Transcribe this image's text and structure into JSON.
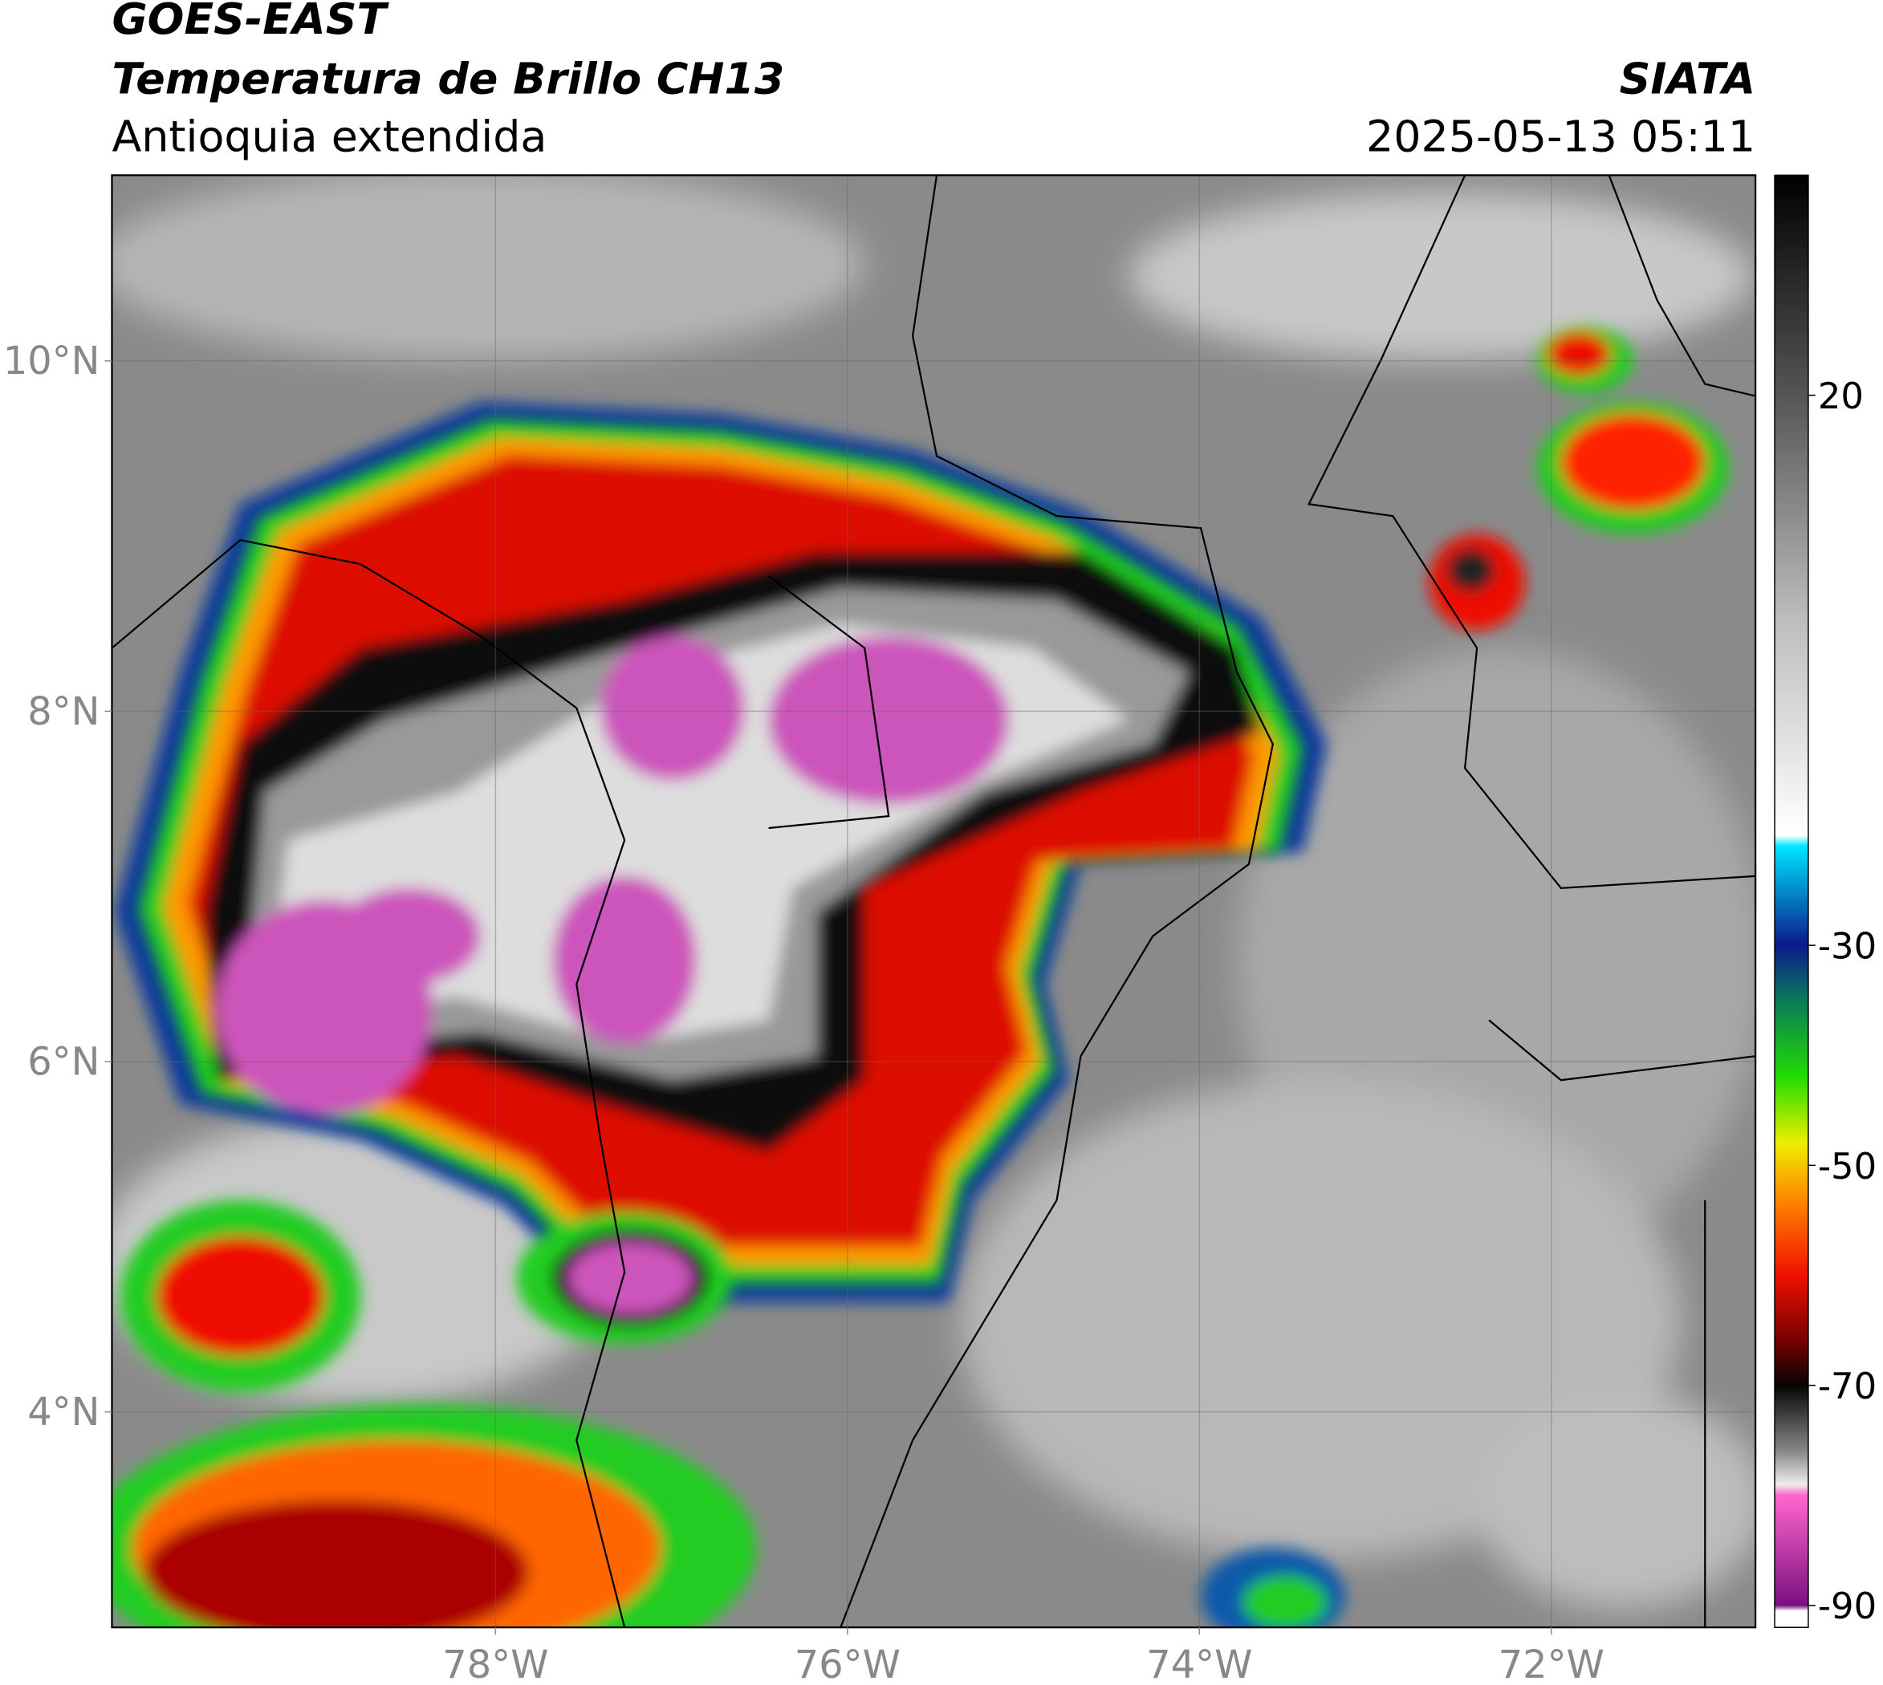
{
  "title": "GOES-EAST",
  "subtitle": "Temperatura de Brillo CH13",
  "region": "Antioquia extendida",
  "source": "SIATA",
  "datetime": "2025-05-13 05:11",
  "map": {
    "xlim": [
      -80.18,
      -70.84
    ],
    "ylim": [
      2.77,
      11.06
    ],
    "xticks": [
      {
        "value": -78,
        "label": "78°W"
      },
      {
        "value": -76,
        "label": "76°W"
      },
      {
        "value": -74,
        "label": "74°W"
      },
      {
        "value": -72,
        "label": "72°W"
      }
    ],
    "yticks": [
      {
        "value": 4,
        "label": "4°N"
      },
      {
        "value": 6,
        "label": "6°N"
      },
      {
        "value": 8,
        "label": "8°N"
      },
      {
        "value": 10,
        "label": "10°N"
      }
    ],
    "grid": true
  },
  "colorbar": {
    "clim": [
      -92,
      40
    ],
    "ticks": [
      20,
      -30,
      -50,
      -70,
      -90
    ],
    "colormap": [
      {
        "value": 40,
        "color": "#000000"
      },
      {
        "value": 20,
        "color": "#555555"
      },
      {
        "value": 0,
        "color": "#bbbbbb"
      },
      {
        "value": -20,
        "color": "#ffffff"
      },
      {
        "value": -21,
        "color": "#00e5ff"
      },
      {
        "value": -30,
        "color": "#0a1a8c"
      },
      {
        "value": -35,
        "color": "#0a7a5a"
      },
      {
        "value": -42,
        "color": "#22dd00"
      },
      {
        "value": -48,
        "color": "#eeee00"
      },
      {
        "value": -53,
        "color": "#ff8800"
      },
      {
        "value": -60,
        "color": "#ee1100"
      },
      {
        "value": -66,
        "color": "#770000"
      },
      {
        "value": -70,
        "color": "#050505"
      },
      {
        "value": -76,
        "color": "#888888"
      },
      {
        "value": -79,
        "color": "#eeeeee"
      },
      {
        "value": -80,
        "color": "#ff66cc"
      },
      {
        "value": -90,
        "color": "#7a1080"
      },
      {
        "value": -90.5,
        "color": "#ffffff"
      },
      {
        "value": -92,
        "color": "#ffffff"
      }
    ]
  }
}
